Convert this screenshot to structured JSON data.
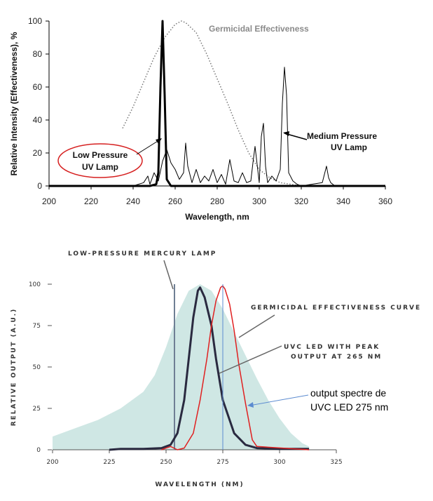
{
  "chart_data": [
    {
      "type": "line",
      "xlabel": "Wavelength, nm",
      "ylabel": "Relative Intensity (Effectiveness), %",
      "xlim": [
        200,
        360
      ],
      "ylim": [
        0,
        100
      ],
      "xticks": [
        200,
        220,
        240,
        260,
        280,
        300,
        320,
        340,
        360
      ],
      "yticks": [
        0,
        20,
        40,
        60,
        80,
        100
      ],
      "series": [
        {
          "name": "Germicidal Effectiveness",
          "style": "dotted",
          "color": "#777777",
          "x": [
            235,
            240,
            245,
            250,
            255,
            260,
            263,
            265,
            270,
            275,
            280,
            285,
            290,
            295,
            300,
            305,
            310,
            315,
            320
          ],
          "y": [
            35,
            48,
            63,
            78,
            90,
            98,
            100,
            99,
            93,
            80,
            65,
            50,
            34,
            20,
            10,
            5,
            2,
            1,
            0
          ]
        },
        {
          "name": "Low Pressure UV Lamp",
          "style": "bold",
          "color": "#000000",
          "x": [
            200,
            248,
            251,
            252,
            253,
            254,
            255,
            256,
            258,
            300,
            360
          ],
          "y": [
            0,
            0,
            1,
            8,
            60,
            100,
            55,
            4,
            0,
            0,
            0
          ]
        },
        {
          "name": "Medium Pressure UV Lamp",
          "style": "thin",
          "color": "#000000",
          "x": [
            240,
            245,
            247,
            248,
            250,
            252,
            254,
            256,
            258,
            260,
            262,
            264,
            265,
            266,
            268,
            270,
            272,
            274,
            276,
            278,
            280,
            282,
            284,
            286,
            288,
            290,
            292,
            294,
            296,
            297,
            298,
            300,
            301,
            302,
            303,
            304,
            306,
            308,
            310,
            311,
            312,
            313,
            314,
            316,
            318,
            320,
            330,
            332,
            333,
            334,
            336,
            345
          ],
          "y": [
            0,
            2,
            6,
            1,
            8,
            3,
            15,
            22,
            14,
            10,
            4,
            8,
            26,
            12,
            2,
            10,
            2,
            6,
            3,
            10,
            2,
            7,
            1,
            16,
            3,
            2,
            8,
            2,
            3,
            14,
            24,
            2,
            30,
            38,
            12,
            2,
            6,
            3,
            10,
            50,
            72,
            55,
            8,
            3,
            1,
            0,
            2,
            12,
            5,
            2,
            0,
            0
          ]
        }
      ],
      "annotations": [
        {
          "text": [
            "Low Pressure",
            "UV Lamp"
          ],
          "circled": true,
          "circle_color": "#d62020"
        },
        {
          "text": [
            "Medium Pressure",
            "UV Lamp"
          ]
        }
      ]
    },
    {
      "type": "area",
      "xlabel": "WAVELENGTH (NM)",
      "ylabel": "RELATIVE OUTPUT (A.U.)",
      "xlim": [
        200,
        325
      ],
      "ylim": [
        0,
        100
      ],
      "xticks": [
        200,
        225,
        250,
        275,
        300,
        325
      ],
      "yticks": [
        0,
        25,
        50,
        75,
        100
      ],
      "series": [
        {
          "name": "GERMICIDAL EFFECTIVENESS CURVE",
          "style": "area",
          "color": "#cfe7e4",
          "x": [
            200,
            210,
            220,
            230,
            240,
            245,
            250,
            255,
            260,
            265,
            270,
            275,
            280,
            285,
            290,
            295,
            300,
            305,
            310,
            313
          ],
          "y": [
            8,
            13,
            18,
            25,
            35,
            45,
            62,
            82,
            96,
            100,
            96,
            85,
            71,
            57,
            43,
            30,
            19,
            10,
            4,
            2
          ]
        },
        {
          "name": "LOW-PRESSURE MERCURY LAMP",
          "style": "vline",
          "color": "#6f7f94",
          "x": [
            253.7,
            253.7
          ],
          "y": [
            0,
            100
          ]
        },
        {
          "name": "UVC LED WITH PEAK OUTPUT AT 265 NM",
          "style": "thick",
          "color": "#2a2a40",
          "x": [
            225,
            230,
            240,
            248,
            252,
            255,
            258,
            260,
            262,
            264,
            265,
            267,
            270,
            272,
            275,
            280,
            285,
            290,
            300,
            313
          ],
          "y": [
            0,
            0.5,
            0.5,
            1,
            3,
            10,
            30,
            55,
            80,
            96,
            98,
            92,
            75,
            55,
            30,
            10,
            3,
            1,
            0.5,
            0.5
          ]
        },
        {
          "name": "output spectre de UVC LED 275 nm",
          "style": "thin",
          "color": "#e02020",
          "x": [
            248,
            250,
            252,
            255,
            258,
            262,
            265,
            268,
            270,
            272,
            274,
            275,
            276,
            278,
            280,
            282,
            285,
            288,
            290,
            313
          ],
          "y": [
            0,
            1,
            2,
            0,
            1,
            10,
            30,
            55,
            75,
            90,
            98,
            99,
            97,
            88,
            72,
            52,
            28,
            6,
            2,
            0
          ]
        },
        {
          "name": "",
          "style": "vline",
          "color": "#5b8bd0",
          "x": [
            275,
            275
          ],
          "y": [
            0,
            100
          ]
        }
      ],
      "annotations": [
        {
          "text": [
            "LOW-PRESSURE MERCURY LAMP"
          ]
        },
        {
          "text": [
            "GERMICIDAL EFFECTIVENESS CURVE"
          ]
        },
        {
          "text": [
            "UVC LED WITH PEAK",
            "OUTPUT AT 265 NM"
          ]
        },
        {
          "text": [
            "output spectre de",
            "UVC LED 275 nm"
          ]
        }
      ]
    }
  ]
}
